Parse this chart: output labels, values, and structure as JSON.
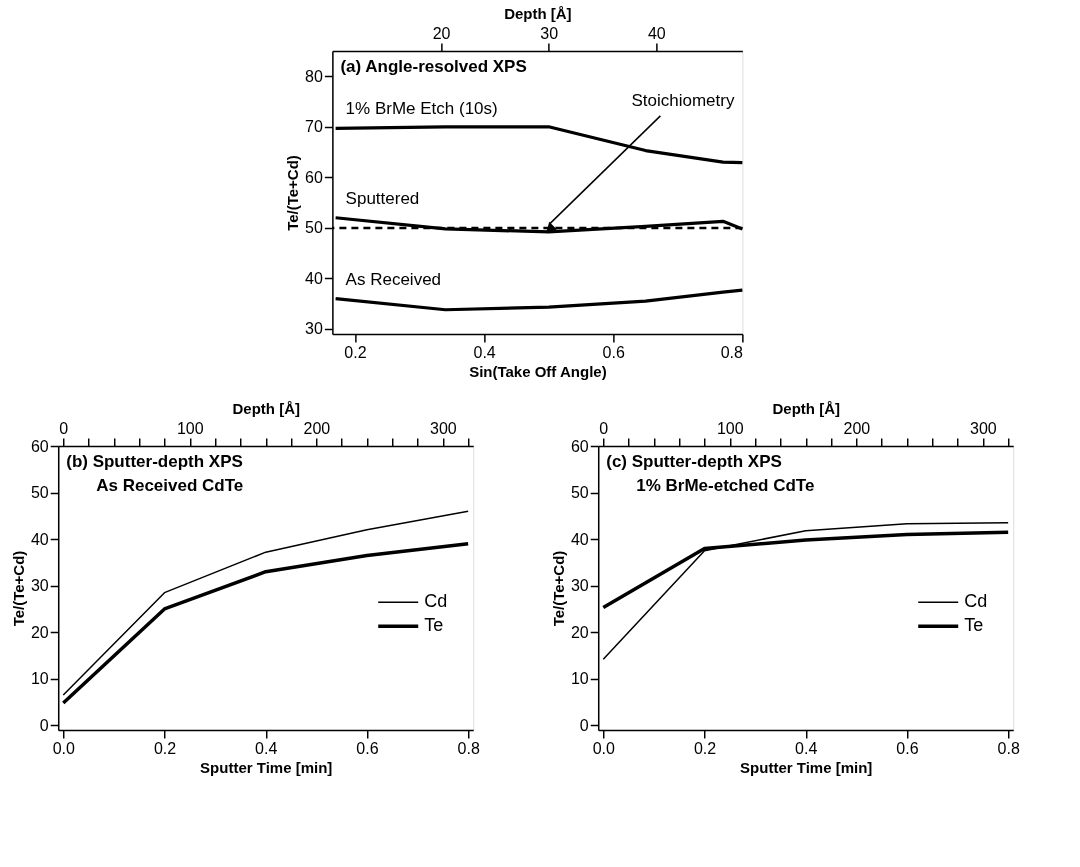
{
  "chart_data": [
    {
      "type": "line",
      "title": "(a) Angle-resolved XPS",
      "xlabel": "Sin(Take Off Angle)",
      "ylabel": "Te/(Te+Cd)",
      "x2label": "Depth [Å]",
      "x": [
        0.17,
        0.34,
        0.5,
        0.65,
        0.77,
        0.8
      ],
      "series": [
        {
          "name": "1% BrMe Etch (10s)",
          "color": "#000000",
          "values": [
            69.7,
            70,
            70,
            65.3,
            63,
            62.9
          ]
        },
        {
          "name": "Sputtered",
          "color": "#000000",
          "values": [
            52,
            49.8,
            49.2,
            50.3,
            51.3,
            49.8
          ]
        },
        {
          "name": "As Received",
          "color": "#000000",
          "values": [
            36,
            33.8,
            34.3,
            35.5,
            37.3,
            37.7
          ]
        }
      ],
      "xlim": [
        0.165,
        0.8
      ],
      "xticks": [
        0.2,
        0.4,
        0.6,
        0.8
      ],
      "ylim": [
        29,
        85
      ],
      "yticks": [
        30,
        40,
        50,
        60,
        70,
        80
      ],
      "x2lim": [
        9.9,
        48
      ],
      "x2ticks": [
        20,
        30,
        40
      ],
      "ref_lines": [
        {
          "axis": "y",
          "value": 50,
          "label": "Stoichiometry",
          "line_style": "dashed",
          "color": "#000000"
        }
      ],
      "grid": false,
      "legend": false,
      "line_style": "solid"
    },
    {
      "type": "line",
      "title": "(b) Sputter-depth XPS",
      "subtitle": "As Received CdTe",
      "xlabel": "Sputter Time [min]",
      "ylabel": "Te/(Te+Cd)",
      "x2label": "Depth [Å]",
      "x": [
        0,
        0.2,
        0.4,
        0.6,
        0.8
      ],
      "series": [
        {
          "name": "Cd",
          "color": "#000000",
          "values": [
            6.5,
            28.5,
            37.2,
            42,
            46
          ]
        },
        {
          "name": "Te",
          "color": "#000000",
          "values": [
            4.8,
            25,
            33,
            36.5,
            39
          ]
        }
      ],
      "xlim": [
        -0.01,
        0.81
      ],
      "xticks": [
        {
          "value": 0,
          "label": "0.0"
        },
        0.2,
        0.4,
        0.6,
        0.8
      ],
      "ylim": [
        -1,
        60
      ],
      "yticks": [
        0,
        10,
        20,
        30,
        40,
        50,
        60
      ],
      "x2lim": [
        -4,
        324
      ],
      "x2ticks": [
        0,
        {
          "value": 20,
          "label": null
        },
        {
          "value": 40,
          "label": null
        },
        {
          "value": 60,
          "label": null
        },
        {
          "value": 80,
          "label": null
        },
        100,
        {
          "value": 120,
          "label": null
        },
        {
          "value": 140,
          "label": null
        },
        {
          "value": 160,
          "label": null
        },
        {
          "value": 180,
          "label": null
        },
        200,
        {
          "value": 220,
          "label": null
        },
        {
          "value": 240,
          "label": null
        },
        {
          "value": 260,
          "label": null
        },
        {
          "value": 280,
          "label": null
        },
        300,
        {
          "value": 320,
          "label": null
        }
      ],
      "grid": false,
      "legend": "right",
      "line_style": "solid"
    },
    {
      "type": "line",
      "title": "(c) Sputter-depth XPS",
      "subtitle": "1% BrMe-etched CdTe",
      "xlabel": "Sputter Time [min]",
      "ylabel": "Te/(Te+Cd)",
      "x2label": "Depth [Å]",
      "x": [
        0,
        0.2,
        0.4,
        0.6,
        0.8
      ],
      "series": [
        {
          "name": "Cd",
          "color": "#000000",
          "values": [
            14.2,
            37.5,
            41.8,
            43.3,
            43.5
          ]
        },
        {
          "name": "Te",
          "color": "#000000",
          "values": [
            25.3,
            38,
            39.8,
            41,
            41.5
          ]
        }
      ],
      "xlim": [
        -0.01,
        0.81
      ],
      "xticks": [
        {
          "value": 0,
          "label": "0.0"
        },
        0.2,
        0.4,
        0.6,
        0.8
      ],
      "ylim": [
        -1,
        60
      ],
      "yticks": [
        0,
        10,
        20,
        30,
        40,
        50,
        60
      ],
      "x2lim": [
        -4,
        324
      ],
      "x2ticks": [
        0,
        {
          "value": 20,
          "label": null
        },
        {
          "value": 40,
          "label": null
        },
        {
          "value": 60,
          "label": null
        },
        {
          "value": 80,
          "label": null
        },
        100,
        {
          "value": 120,
          "label": null
        },
        {
          "value": 140,
          "label": null
        },
        {
          "value": 160,
          "label": null
        },
        {
          "value": 180,
          "label": null
        },
        200,
        {
          "value": 220,
          "label": null
        },
        {
          "value": 240,
          "label": null
        },
        {
          "value": 260,
          "label": null
        },
        {
          "value": 280,
          "label": null
        },
        300,
        {
          "value": 320,
          "label": null
        }
      ],
      "grid": false,
      "legend": "right",
      "line_style": "solid"
    }
  ]
}
